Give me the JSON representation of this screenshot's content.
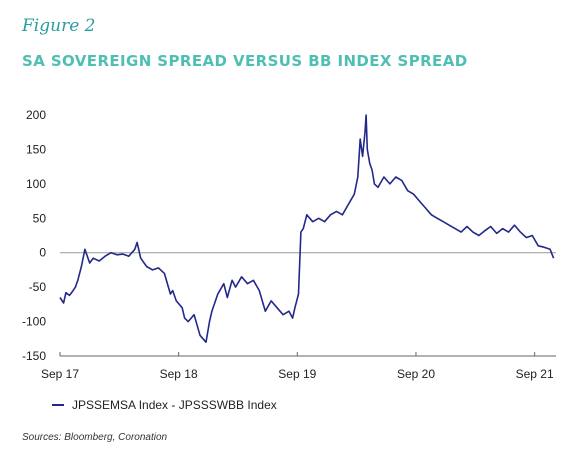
{
  "figure_label": "Figure 2",
  "chart_data": {
    "type": "line",
    "title": "SA SOVEREIGN SPREAD VERSUS BB INDEX SPREAD",
    "xlabel": "",
    "ylabel": "",
    "x_ticks": [
      "Sep 17",
      "Sep 18",
      "Sep 19",
      "Sep 20",
      "Sep 21"
    ],
    "y_ticks": [
      200,
      150,
      100,
      50,
      0,
      -50,
      -100,
      -150
    ],
    "ylim": [
      -150,
      200
    ],
    "xlim": [
      2017.67,
      2021.85
    ],
    "zero_line": true,
    "grid": false,
    "legend_position": "bottom-left",
    "series": [
      {
        "name": "JPSSEMSA Index - JPSSSWBB Index",
        "color": "#22298a",
        "x": [
          2017.67,
          2017.7,
          2017.72,
          2017.75,
          2017.78,
          2017.8,
          2017.82,
          2017.85,
          2017.88,
          2017.9,
          2017.92,
          2017.95,
          2018.0,
          2018.05,
          2018.1,
          2018.15,
          2018.2,
          2018.25,
          2018.3,
          2018.32,
          2018.35,
          2018.4,
          2018.45,
          2018.5,
          2018.55,
          2018.6,
          2018.62,
          2018.65,
          2018.7,
          2018.72,
          2018.75,
          2018.8,
          2018.85,
          2018.9,
          2018.93,
          2018.95,
          2019.0,
          2019.05,
          2019.08,
          2019.12,
          2019.15,
          2019.2,
          2019.25,
          2019.3,
          2019.35,
          2019.4,
          2019.45,
          2019.5,
          2019.55,
          2019.6,
          2019.63,
          2019.65,
          2019.68,
          2019.7,
          2019.72,
          2019.75,
          2019.8,
          2019.85,
          2019.9,
          2019.95,
          2020.0,
          2020.05,
          2020.1,
          2020.15,
          2020.18,
          2020.2,
          2020.22,
          2020.24,
          2020.25,
          2020.26,
          2020.28,
          2020.3,
          2020.32,
          2020.35,
          2020.4,
          2020.45,
          2020.5,
          2020.55,
          2020.6,
          2020.65,
          2020.7,
          2020.75,
          2020.8,
          2020.85,
          2020.9,
          2020.95,
          2021.0,
          2021.05,
          2021.1,
          2021.15,
          2021.2,
          2021.25,
          2021.3,
          2021.35,
          2021.4,
          2021.45,
          2021.5,
          2021.55,
          2021.6,
          2021.65,
          2021.7,
          2021.75,
          2021.8,
          2021.83
        ],
        "values": [
          -65,
          -73,
          -58,
          -62,
          -55,
          -50,
          -40,
          -20,
          5,
          -5,
          -15,
          -8,
          -12,
          -5,
          0,
          -3,
          -2,
          -5,
          5,
          15,
          -8,
          -20,
          -25,
          -22,
          -30,
          -60,
          -55,
          -70,
          -80,
          -95,
          -100,
          -90,
          -120,
          -130,
          -100,
          -85,
          -60,
          -45,
          -65,
          -40,
          -50,
          -35,
          -45,
          -40,
          -55,
          -85,
          -70,
          -80,
          -90,
          -85,
          -95,
          -80,
          -60,
          30,
          35,
          55,
          45,
          50,
          45,
          55,
          60,
          55,
          70,
          85,
          110,
          165,
          140,
          175,
          200,
          150,
          130,
          120,
          100,
          95,
          110,
          100,
          110,
          105,
          90,
          85,
          75,
          65,
          55,
          50,
          45,
          40,
          35,
          30,
          38,
          30,
          25,
          32,
          38,
          28,
          35,
          30,
          40,
          30,
          22,
          25,
          10,
          8,
          5,
          -8
        ]
      }
    ]
  },
  "source": "Sources: Bloomberg, Coronation"
}
